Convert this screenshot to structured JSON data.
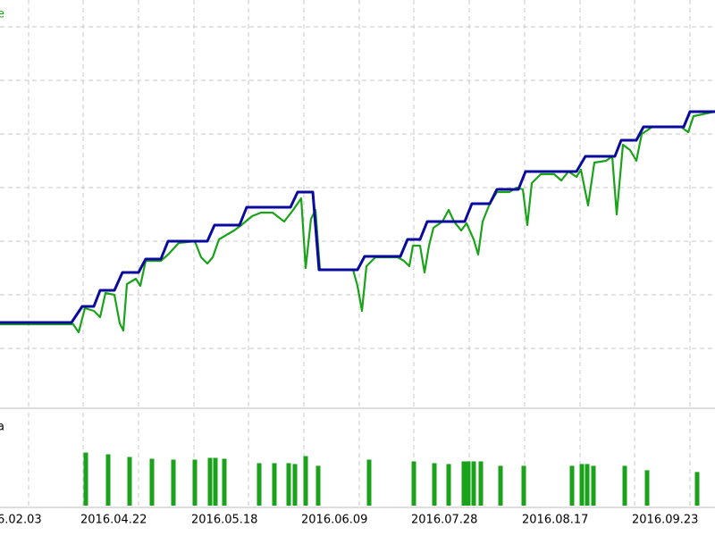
{
  "chart_data": [
    {
      "type": "line",
      "title": "e",
      "title_color": "#1aa31a",
      "xlim": [
        0,
        800
      ],
      "ylim": [
        0,
        455
      ],
      "yticks": [
        65,
        125,
        185,
        245,
        305,
        365,
        425
      ],
      "grid": true,
      "series": [
        {
          "color": "#1aa31a",
          "x": [
            0,
            82,
            88,
            95,
            105,
            112,
            118,
            128,
            134,
            138,
            142,
            152,
            157,
            163,
            180,
            188,
            200,
            218,
            225,
            232,
            238,
            245,
            255,
            262,
            270,
            282,
            292,
            305,
            318,
            328,
            337,
            342,
            348,
            353,
            358,
            395,
            400,
            405,
            410,
            420,
            445,
            452,
            458,
            462,
            470,
            475,
            480,
            485,
            495,
            502,
            508,
            516,
            522,
            530,
            535,
            540,
            548,
            556,
            570,
            578,
            585,
            590,
            595,
            605,
            620,
            628,
            636,
            645,
            650,
            658,
            665,
            678,
            685,
            690,
            697,
            705,
            712,
            718,
            730,
            762,
            770,
            776,
            800
          ],
          "values": [
            92,
            92,
            83,
            110,
            107,
            100,
            127,
            125,
            93,
            85,
            137,
            143,
            135,
            163,
            163,
            170,
            183,
            185,
            167,
            160,
            167,
            187,
            193,
            197,
            203,
            213,
            217,
            217,
            207,
            220,
            233,
            155,
            210,
            220,
            153,
            153,
            135,
            107,
            157,
            167,
            167,
            163,
            157,
            180,
            180,
            150,
            180,
            200,
            207,
            220,
            207,
            197,
            205,
            187,
            170,
            207,
            227,
            240,
            240,
            245,
            243,
            203,
            250,
            260,
            260,
            253,
            263,
            257,
            265,
            225,
            273,
            275,
            280,
            215,
            293,
            287,
            275,
            305,
            313,
            313,
            307,
            325,
            330
          ]
        },
        {
          "color": "#0a0a9c",
          "x": [
            0,
            80,
            92,
            105,
            112,
            128,
            137,
            155,
            163,
            180,
            188,
            232,
            240,
            268,
            276,
            325,
            333,
            350,
            357,
            400,
            408,
            448,
            456,
            470,
            478,
            520,
            528,
            548,
            556,
            580,
            588,
            645,
            655,
            688,
            695,
            712,
            720,
            765,
            772,
            800
          ],
          "values": [
            94,
            94,
            112,
            112,
            130,
            130,
            150,
            150,
            165,
            165,
            185,
            185,
            203,
            203,
            223,
            223,
            240,
            240,
            153,
            153,
            168,
            168,
            187,
            187,
            207,
            207,
            227,
            227,
            243,
            243,
            263,
            263,
            280,
            280,
            298,
            298,
            313,
            313,
            330,
            330
          ]
        }
      ]
    },
    {
      "type": "bar",
      "title": "a",
      "title_color": "#000000",
      "color": "#1aa31a",
      "xlim": [
        0,
        800
      ],
      "ylim": [
        0,
        105
      ],
      "grid": true,
      "xticks": [
        {
          "value": 0,
          "label": "6.02.03"
        },
        {
          "value": 93,
          "label": "2016.04.22"
        },
        {
          "value": 217,
          "label": "2016.05.18"
        },
        {
          "value": 340,
          "label": "2016.06.09"
        },
        {
          "value": 463,
          "label": "2016.07.28"
        },
        {
          "value": 587,
          "label": "2016.08.17"
        },
        {
          "value": 710,
          "label": "2016.09.23"
        }
      ],
      "xgrid": [
        32,
        93,
        155,
        217,
        278,
        340,
        402,
        463,
        525,
        587,
        649,
        710,
        772
      ],
      "x": [
        96,
        121,
        145,
        170,
        194,
        218,
        235,
        241,
        251,
        290,
        307,
        323,
        330,
        342,
        356,
        413,
        463,
        486,
        502,
        519,
        524,
        530,
        538,
        560,
        586,
        640,
        651,
        657,
        664,
        699,
        724,
        780
      ],
      "values": [
        60,
        58,
        55,
        53,
        52,
        52,
        54,
        54,
        53,
        48,
        48,
        48,
        47,
        56,
        45,
        52,
        50,
        48,
        47,
        50,
        50,
        50,
        50,
        45,
        45,
        45,
        47,
        47,
        45,
        45,
        40,
        38
      ]
    }
  ]
}
